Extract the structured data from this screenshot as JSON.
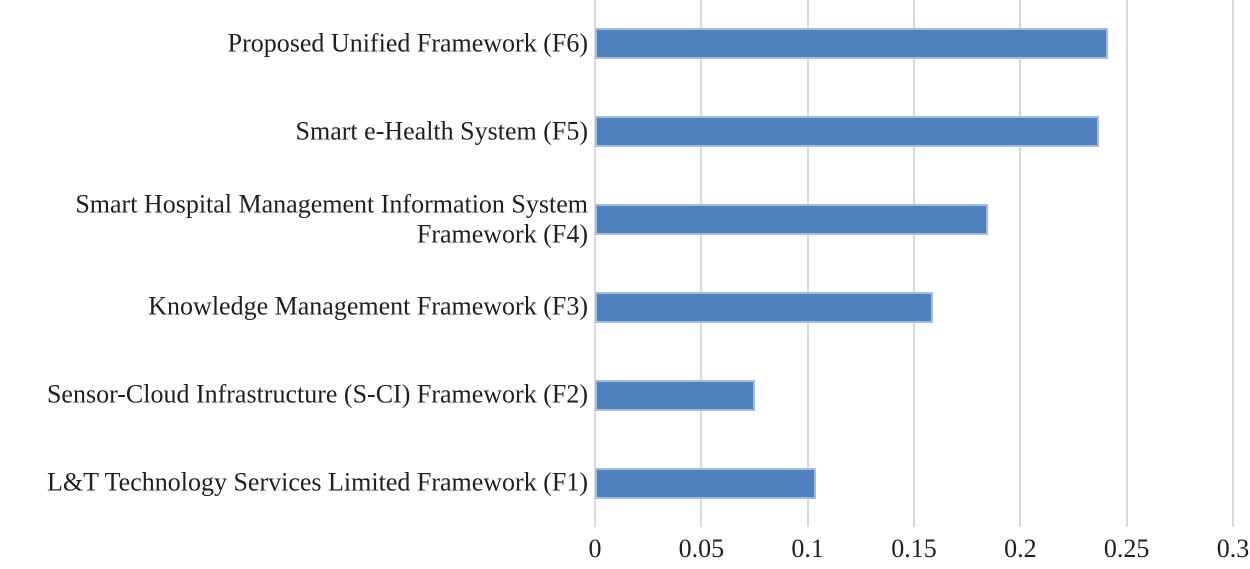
{
  "chart_data": {
    "type": "bar",
    "orientation": "horizontal",
    "title": "",
    "xlabel": "",
    "ylabel": "",
    "categories": [
      "Proposed Unified Framework (F6)",
      "Smart e-Health System (F5)",
      "Smart Hospital Management Information System Framework (F4)",
      "Knowledge Management Framework (F3)",
      "Sensor-Cloud Infrastructure (S-CI) Framework (F2)",
      "L&T Technology Services Limited Framework (F1)"
    ],
    "values": [
      0.241,
      0.237,
      0.185,
      0.159,
      0.075,
      0.104
    ],
    "xlim": [
      0,
      0.3
    ],
    "xticks": [
      0,
      0.05,
      0.1,
      0.15,
      0.2,
      0.25,
      0.3
    ],
    "xtick_labels": [
      "0",
      "0.05",
      "0.1",
      "0.15",
      "0.2",
      "0.25",
      "0.3"
    ],
    "grid": true,
    "legend": false,
    "colors": {
      "bar_fill": "#4E81BD",
      "bar_border": "#A3BDDE",
      "gridline": "#D9D9D9",
      "text": "#1F1F1F",
      "background": "#FFFFFF"
    }
  }
}
